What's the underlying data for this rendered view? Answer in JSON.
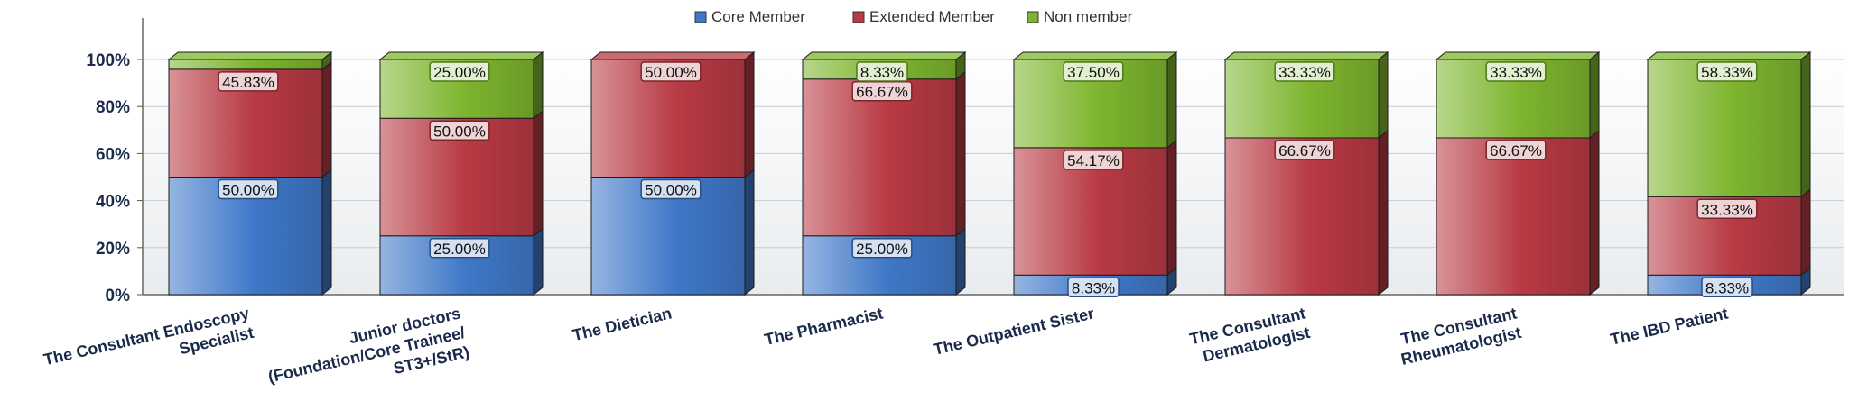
{
  "chart_data": {
    "type": "bar",
    "stacked": true,
    "categories": [
      [
        "The Consultant Endoscopy",
        "Specialist"
      ],
      [
        "Junior doctors",
        "(Foundation/Core Trainee/",
        "ST3+/StR)"
      ],
      [
        "The Dietician"
      ],
      [
        "The Pharmacist"
      ],
      [
        "The Outpatient Sister"
      ],
      [
        "The Consultant",
        "Dermatologist"
      ],
      [
        "The Consultant",
        "Rheumatologist"
      ],
      [
        "The IBD Patient"
      ]
    ],
    "series": [
      {
        "name": "Core Member",
        "color": "#3f78c8",
        "values": [
          50.0,
          25.0,
          50.0,
          25.0,
          8.33,
          0,
          0,
          8.33
        ],
        "labels": [
          "50.00%",
          "25.00%",
          "50.00%",
          "25.00%",
          "8.33%",
          "",
          "",
          "8.33%"
        ]
      },
      {
        "name": "Extended Member",
        "color": "#b83a44",
        "values": [
          45.83,
          50.0,
          50.0,
          66.67,
          54.17,
          66.67,
          66.67,
          33.33
        ],
        "labels": [
          "45.83%",
          "50.00%",
          "50.00%",
          "66.67%",
          "54.17%",
          "66.67%",
          "66.67%",
          "33.33%"
        ]
      },
      {
        "name": "Non member",
        "color": "#7db52e",
        "values": [
          4.17,
          25.0,
          0,
          8.33,
          37.5,
          33.33,
          33.33,
          58.33
        ],
        "labels": [
          "",
          "25.00%",
          "",
          "8.33%",
          "37.50%",
          "33.33%",
          "33.33%",
          "58.33%"
        ]
      }
    ],
    "y_ticks": [
      "0%",
      "20%",
      "40%",
      "60%",
      "80%",
      "100%"
    ],
    "ylim": [
      0,
      100
    ],
    "grid": true,
    "legend_position": "top-center"
  }
}
